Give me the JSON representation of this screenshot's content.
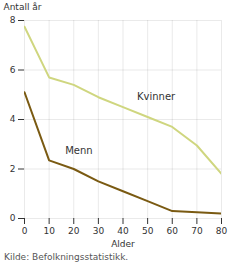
{
  "chart_data": {
    "type": "line",
    "x": [
      0,
      10,
      20,
      30,
      40,
      50,
      60,
      70,
      80
    ],
    "series": [
      {
        "name": "Kvinner",
        "color": "#cfd67f",
        "values": [
          7.75,
          5.7,
          5.4,
          4.9,
          4.5,
          4.1,
          3.7,
          2.95,
          1.8
        ]
      },
      {
        "name": "Menn",
        "color": "#7a5a12",
        "values": [
          5.1,
          2.35,
          2.0,
          1.5,
          1.1,
          0.7,
          0.3,
          0.25,
          0.2
        ]
      }
    ],
    "x_label": "Alder",
    "y_label": "Antall år",
    "xlim": [
      0,
      80
    ],
    "xticks": [
      0,
      10,
      20,
      30,
      40,
      50,
      60,
      70,
      80
    ],
    "ylim": [
      0,
      8
    ],
    "yticks": [
      0,
      2,
      4,
      6,
      8
    ],
    "grid": true,
    "caption": "Kilde: Befolkningsstatistikk."
  }
}
